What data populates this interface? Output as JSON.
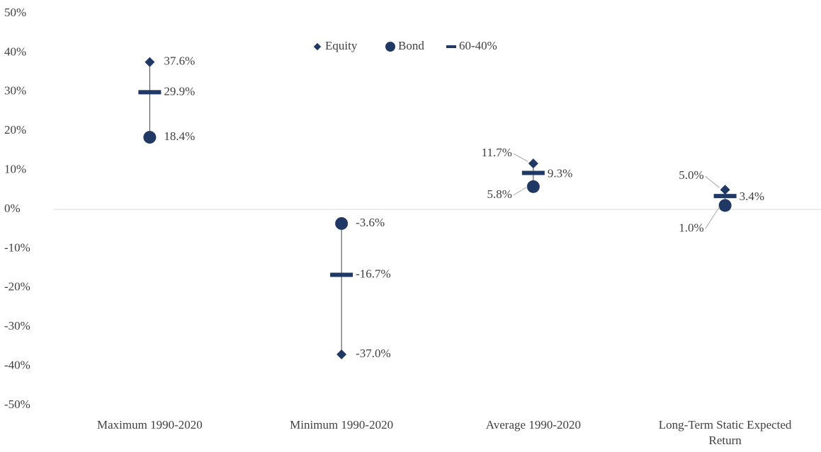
{
  "chart_data": {
    "type": "range-dot",
    "categories": [
      "Maximum 1990-2020",
      "Minimum 1990-2020",
      "Average 1990-2020",
      "Long-Term Static Expected Return"
    ],
    "series": [
      {
        "name": "Equity",
        "color": "#203864",
        "marker": "diamond",
        "values": [
          37.6,
          -37.0,
          11.7,
          5.0
        ],
        "value_labels": [
          "37.6%",
          "-37.0%",
          "11.7%",
          "5.0%"
        ]
      },
      {
        "name": "Bond",
        "color": "#203864",
        "marker": "circle",
        "values": [
          18.4,
          -3.6,
          5.8,
          1.0
        ],
        "value_labels": [
          "18.4%",
          "-3.6%",
          "5.8%",
          "1.0%"
        ]
      },
      {
        "name": "60-40%",
        "color": "#203864",
        "marker": "dash",
        "values": [
          29.9,
          -16.7,
          9.3,
          3.4
        ],
        "value_labels": [
          "29.9%",
          "-16.7%",
          "9.3%",
          "3.4%"
        ]
      }
    ],
    "ylim": [
      -50,
      50
    ],
    "yticks": [
      {
        "value": -50,
        "label": "-50%"
      },
      {
        "value": -40,
        "label": "-40%"
      },
      {
        "value": -30,
        "label": "-30%"
      },
      {
        "value": -20,
        "label": "-20%"
      },
      {
        "value": -10,
        "label": "-10%"
      },
      {
        "value": 0,
        "label": "0%"
      },
      {
        "value": 10,
        "label": "10%"
      },
      {
        "value": 20,
        "label": "20%"
      },
      {
        "value": 30,
        "label": "30%"
      },
      {
        "value": 40,
        "label": "40%"
      },
      {
        "value": 50,
        "label": "50%"
      }
    ],
    "legend": "top"
  }
}
